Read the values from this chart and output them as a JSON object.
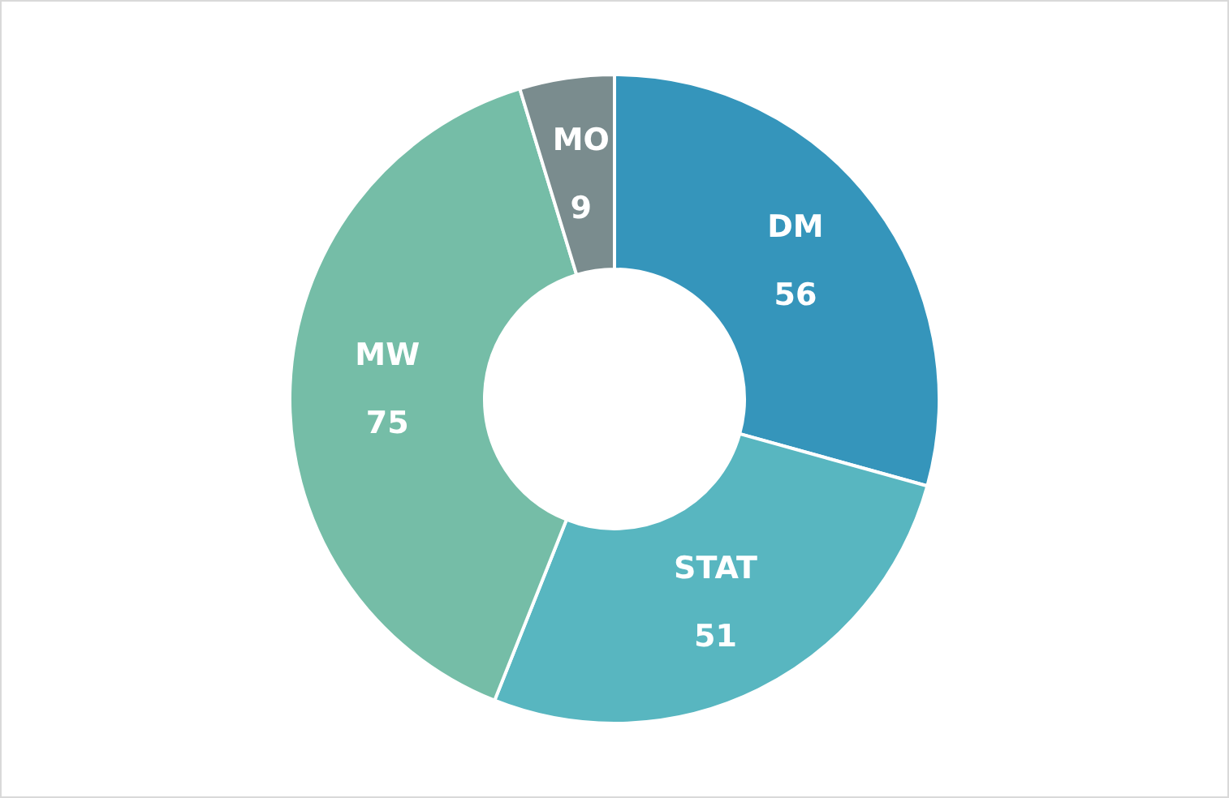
{
  "chart_data": {
    "type": "donut",
    "categories": [
      "DM",
      "STAT",
      "MW",
      "MO"
    ],
    "values": [
      56,
      51,
      75,
      9
    ],
    "colors": [
      "#3595bb",
      "#58b6c0",
      "#75bda7",
      "#7a8c8e"
    ],
    "data_labels": true,
    "legend": false
  }
}
